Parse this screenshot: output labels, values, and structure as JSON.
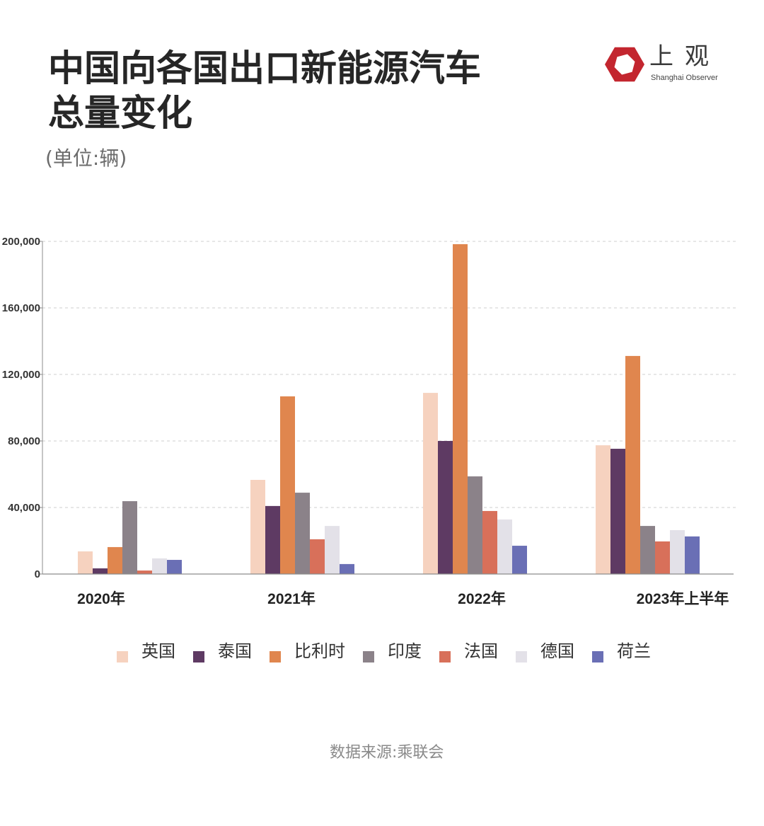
{
  "brand": {
    "logo_icon": "hexagon-shutter-icon",
    "logo_text": "上观",
    "logo_subtitle": "Shanghai Observer",
    "logo_color": "#C3262F"
  },
  "chart_data": {
    "type": "bar",
    "title_lines": [
      "中国向各国出口新能源汽车",
      "总量变化"
    ],
    "subtitle": "(单位:辆)",
    "categories": [
      "2020年",
      "2021年",
      "2022年",
      "2023年上半年"
    ],
    "series": [
      {
        "name": "英国",
        "color": "#F6D2BF",
        "values": [
          13600,
          56600,
          108900,
          77400
        ]
      },
      {
        "name": "泰国",
        "color": "#5E3A63",
        "values": [
          3400,
          40900,
          80000,
          75300
        ]
      },
      {
        "name": "比利时",
        "color": "#E0864E",
        "values": [
          16200,
          106800,
          198300,
          131100
        ]
      },
      {
        "name": "印度",
        "color": "#8B8289",
        "values": [
          43800,
          48900,
          58700,
          28900
        ]
      },
      {
        "name": "法国",
        "color": "#D8705A",
        "values": [
          2100,
          20900,
          37900,
          19600
        ]
      },
      {
        "name": "德国",
        "color": "#E3E1E8",
        "values": [
          9400,
          28900,
          32800,
          26400
        ]
      },
      {
        "name": "荷兰",
        "color": "#6A6FB5",
        "values": [
          8500,
          6000,
          17000,
          22600
        ]
      }
    ],
    "yticks": [
      0,
      40000,
      80000,
      120000,
      160000,
      200000
    ],
    "y_tick_labels": [
      "0",
      "40,000",
      "80,000",
      "120,000",
      "160,000",
      "200,000"
    ],
    "ylim": [
      0,
      200000
    ],
    "grid": true,
    "legend_position": "bottom"
  },
  "footer": {
    "source": "数据来源:乘联会"
  }
}
